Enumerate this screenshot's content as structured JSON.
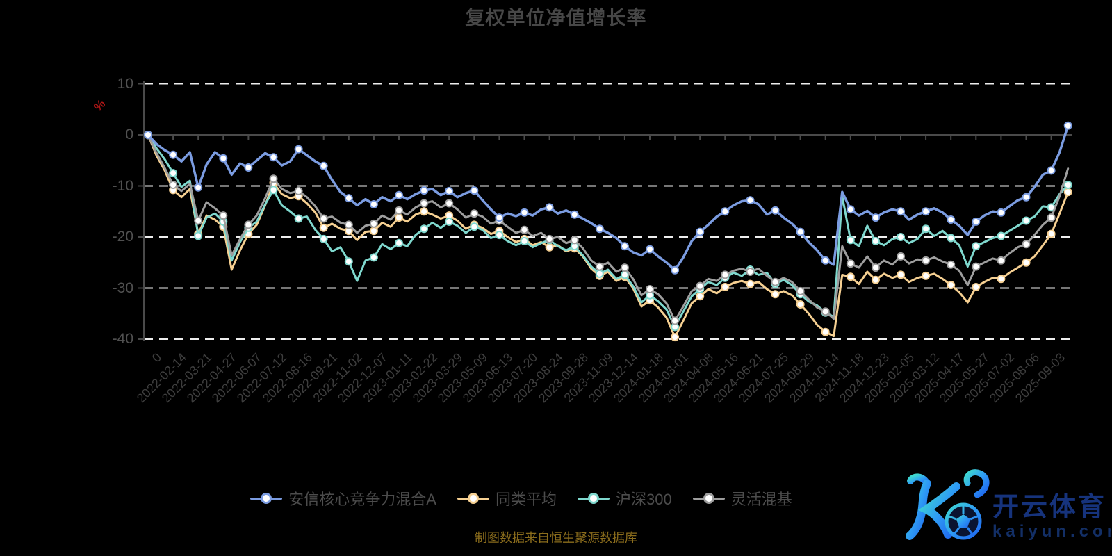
{
  "title": "复权单位净值增长率",
  "footnote": "制图数据来自恒生聚源数据库",
  "y_axis": {
    "unit_label": "%",
    "unit_color": "#b01616",
    "tick_labels": [
      "10",
      "0",
      "-10",
      "-20",
      "-30",
      "-40"
    ],
    "tick_values": [
      10,
      0,
      -10,
      -20,
      -30,
      -40
    ]
  },
  "legend": {
    "items": [
      {
        "label": "安信核心竞争力混合A",
        "color": "#7b9ce1"
      },
      {
        "label": "同类平均",
        "color": "#f6d092"
      },
      {
        "label": "沪深300",
        "color": "#7fd8ce"
      },
      {
        "label": "灵活混基",
        "color": "#9e9e9e"
      }
    ]
  },
  "watermark": {
    "brand": "开云体育",
    "domain": "kaiyun.com",
    "gradient_start": "#3fd9cf",
    "gradient_mid": "#2e9bf5",
    "gradient_end": "#1e63ee",
    "text_color": "#16337c"
  },
  "chart_data": {
    "type": "line",
    "title": "复权单位净值增长率",
    "ylabel": "%",
    "ylim": [
      -40,
      10
    ],
    "grid_values": [
      10,
      -10,
      -20,
      -30,
      -40
    ],
    "zero_axis": 0,
    "grid_style": "white dashed horizontal lines, solid grey zero axis, black background",
    "legend_position": "bottom",
    "marker_every": 3,
    "x_tick_labels": [
      "0",
      "2022-02-14",
      "2022-03-21",
      "2022-04-27",
      "2022-06-07",
      "2022-07-12",
      "2022-08-16",
      "2022-09-21",
      "2022-11-02",
      "2022-12-07",
      "2023-01-11",
      "2023-02-22",
      "2023-03-29",
      "2023-05-09",
      "2023-06-13",
      "2023-07-20",
      "2023-08-24",
      "2023-09-28",
      "2023-11-09",
      "2023-12-14",
      "2024-01-18",
      "2024-03-01",
      "2024-04-08",
      "2024-05-16",
      "2024-06-21",
      "2024-07-25",
      "2024-08-29",
      "2024-10-14",
      "2024-11-18",
      "2024-12-23",
      "2025-02-05",
      "2025-03-12",
      "2025-04-17",
      "2025-05-27",
      "2025-07-02",
      "2025-08-06",
      "2025-09-03"
    ],
    "series": [
      {
        "name": "同类平均",
        "color": "#f6d092",
        "tip_marker": true,
        "values": [
          0,
          -4,
          -7,
          -10.8,
          -12.2,
          -10.6,
          -19.4,
          -15.8,
          -16.6,
          -18,
          -26.4,
          -22.6,
          -19.4,
          -17.6,
          -13.8,
          -9.4,
          -11.6,
          -12.4,
          -12,
          -13.4,
          -15.2,
          -18.2,
          -17.4,
          -18.4,
          -18.8,
          -20.6,
          -19,
          -18.8,
          -17.2,
          -18,
          -16.2,
          -17,
          -15.6,
          -15,
          -15.6,
          -16.4,
          -15.8,
          -16.8,
          -18.4,
          -17.6,
          -18.2,
          -19.4,
          -18.8,
          -20,
          -21,
          -20.4,
          -21.6,
          -21,
          -22,
          -21.6,
          -22.8,
          -22.2,
          -23.8,
          -26.2,
          -27.6,
          -26.8,
          -28.6,
          -27.8,
          -30,
          -33.6,
          -32.4,
          -33.8,
          -35.8,
          -39.6,
          -36.4,
          -33,
          -31.6,
          -30.2,
          -31,
          -29.8,
          -29,
          -28.6,
          -29.2,
          -28.8,
          -30.2,
          -31.2,
          -30.6,
          -31.4,
          -33.2,
          -35,
          -37.2,
          -38.6,
          -39.4,
          -27.4,
          -27.8,
          -29.2,
          -26.8,
          -28.4,
          -27.2,
          -28,
          -27.4,
          -28.8,
          -28,
          -27.6,
          -27.2,
          -28.2,
          -29.4,
          -30.8,
          -32.8,
          -29.8,
          -28.8,
          -28,
          -28.2,
          -27,
          -26,
          -25,
          -23.8,
          -21.6,
          -19.4,
          -15.4,
          -11.2
        ]
      },
      {
        "name": "沪深300",
        "color": "#7fd8ce",
        "tip_marker": true,
        "values": [
          0,
          -2.6,
          -4.8,
          -7.5,
          -10.2,
          -9,
          -19.8,
          -16.2,
          -15.4,
          -17,
          -24.6,
          -21,
          -18.2,
          -17,
          -13.6,
          -10.8,
          -13.8,
          -15,
          -16.4,
          -16,
          -18.6,
          -20.4,
          -22.8,
          -22,
          -24.8,
          -28.6,
          -24.6,
          -24,
          -21.4,
          -22.4,
          -21.2,
          -21.8,
          -19.6,
          -18.4,
          -17.2,
          -18.2,
          -17,
          -17.8,
          -19.2,
          -18,
          -18.6,
          -20.2,
          -19.6,
          -20.8,
          -21.6,
          -20.8,
          -22,
          -21.2,
          -20.6,
          -21.8,
          -22.6,
          -21.8,
          -23.6,
          -25.8,
          -27.2,
          -26.4,
          -28.2,
          -27.4,
          -29.6,
          -32.8,
          -31.4,
          -32.6,
          -34.2,
          -37.6,
          -34.6,
          -31.6,
          -30.2,
          -28.8,
          -29.4,
          -28,
          -27,
          -27.6,
          -26.4,
          -27.4,
          -27,
          -29.2,
          -28.4,
          -29.4,
          -31.2,
          -32.6,
          -33.4,
          -34.8,
          -35.6,
          -12,
          -20.6,
          -21.8,
          -17.8,
          -20.8,
          -21.6,
          -20.4,
          -20,
          -21.2,
          -20.4,
          -18.4,
          -19.8,
          -18.8,
          -20.2,
          -21.6,
          -25.8,
          -21.8,
          -21,
          -20.2,
          -19.8,
          -18.8,
          -17.8,
          -16.8,
          -16,
          -14,
          -14.2,
          -11.6,
          -9.8
        ]
      },
      {
        "name": "灵活混基",
        "color": "#9e9e9e",
        "tip_marker": false,
        "values": [
          0,
          -3.5,
          -6.5,
          -9.8,
          -11,
          -9.6,
          -16.8,
          -13.2,
          -14.4,
          -15.8,
          -23.6,
          -20.4,
          -17.6,
          -15.8,
          -12.4,
          -8.6,
          -10.6,
          -11.4,
          -11,
          -12.2,
          -14,
          -16.4,
          -16,
          -17.2,
          -17.6,
          -19.2,
          -17.8,
          -17.4,
          -15.8,
          -16.6,
          -14.8,
          -15.6,
          -14.2,
          -13.4,
          -13,
          -14.2,
          -13.4,
          -14.6,
          -16.2,
          -15.4,
          -16,
          -17.4,
          -16.8,
          -18,
          -19.2,
          -18.6,
          -19.8,
          -19.2,
          -20.4,
          -20,
          -21.2,
          -20.6,
          -22.2,
          -24.6,
          -25.8,
          -25,
          -26.8,
          -26,
          -28.2,
          -31.4,
          -30.2,
          -31.2,
          -33,
          -36.4,
          -33.6,
          -30.6,
          -29.6,
          -28.2,
          -28.6,
          -27.4,
          -26.6,
          -26.2,
          -26.8,
          -26.2,
          -27.6,
          -28.8,
          -28,
          -28.8,
          -30.6,
          -32.2,
          -33.8,
          -34.6,
          -36,
          -21.8,
          -25.2,
          -26,
          -23.8,
          -26,
          -24.6,
          -25.4,
          -23.8,
          -25.2,
          -24.4,
          -24.6,
          -24,
          -24.8,
          -25.4,
          -26.6,
          -29.4,
          -25.8,
          -25,
          -24.2,
          -24.6,
          -23.2,
          -22,
          -21.4,
          -19.6,
          -17.6,
          -16.2,
          -12,
          -6.6
        ]
      },
      {
        "name": "安信核心竞争力混合A",
        "color": "#7b9ce1",
        "tip_marker": true,
        "values": [
          0,
          -1.8,
          -3,
          -3.9,
          -5.2,
          -3.4,
          -10.3,
          -5.8,
          -3.4,
          -4.6,
          -7.8,
          -5.6,
          -6.4,
          -5,
          -3.6,
          -4.4,
          -6,
          -5.2,
          -2.8,
          -4,
          -5.2,
          -6.1,
          -8.8,
          -11.2,
          -12.4,
          -13.8,
          -12.6,
          -13.6,
          -12.2,
          -13,
          -11.8,
          -12.6,
          -11.6,
          -10.9,
          -10.6,
          -11.8,
          -11,
          -12.2,
          -11.4,
          -10.9,
          -12.8,
          -14.6,
          -16.2,
          -15.4,
          -15.9,
          -15.2,
          -15.8,
          -14.6,
          -14.2,
          -15.4,
          -14.8,
          -15.6,
          -16.4,
          -17.3,
          -18.4,
          -19.2,
          -20.2,
          -21.8,
          -23,
          -23.6,
          -22.4,
          -23.8,
          -25,
          -26.5,
          -24,
          -20.8,
          -19,
          -17.6,
          -16,
          -15,
          -13.8,
          -13,
          -12.8,
          -13.6,
          -15.6,
          -14.8,
          -16.2,
          -17.4,
          -19,
          -21,
          -22.6,
          -24.6,
          -25.4,
          -11.2,
          -14.6,
          -15.8,
          -14.9,
          -16.2,
          -15.2,
          -14.6,
          -15,
          -16.6,
          -15.6,
          -15,
          -14.4,
          -15.2,
          -16.6,
          -17.8,
          -19.6,
          -17,
          -15.8,
          -15,
          -15.2,
          -14,
          -12.8,
          -12.2,
          -10.2,
          -7.8,
          -7,
          -3.4,
          1.8
        ]
      }
    ]
  }
}
